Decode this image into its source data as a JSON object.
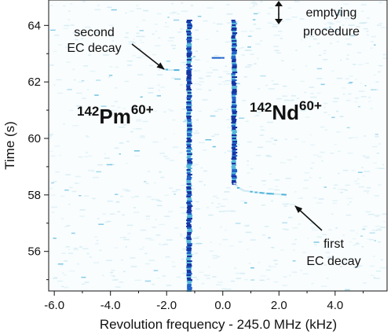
{
  "chart_data": {
    "type": "heatmap",
    "xlabel": "Revolution frequency - 245.0 MHz (kHz)",
    "ylabel": "Time (s)",
    "xlim": [
      -6.2,
      5.85
    ],
    "ylim": [
      54.6,
      64.9
    ],
    "xticks": [
      -6.0,
      -4.0,
      -2.0,
      0.0,
      2.0,
      4.0
    ],
    "xtick_labels": [
      "-6.0",
      "-4.0",
      "-2.0",
      "0.0",
      "2.0",
      "4.0"
    ],
    "yticks": [
      56,
      58,
      60,
      62,
      64
    ],
    "ytick_labels": [
      "56",
      "58",
      "60",
      "62",
      "64"
    ],
    "grid": false,
    "colormap": [
      "#ffffff",
      "#cfe9f2",
      "#4fb3d9",
      "#1a5fc8",
      "#0b2fa0"
    ],
    "traces": [
      {
        "ion": "142Pm60+",
        "x": [
          -1.2,
          -1.2
        ],
        "y": [
          54.6,
          64.2
        ],
        "intensity": "strong"
      },
      {
        "ion": "142Nd60+",
        "x": [
          0.4,
          0.4
        ],
        "y": [
          58.4,
          64.2
        ],
        "intensity": "strong"
      },
      {
        "ion": "142Nd60+ transition",
        "x": [
          0.42,
          0.55,
          0.75,
          1.1,
          1.6,
          2.3
        ],
        "y": [
          58.4,
          58.25,
          58.15,
          58.1,
          58.05,
          58.0
        ],
        "intensity": "weak"
      },
      {
        "ion": "second decay arrival",
        "x": [
          -2.1,
          -1.9,
          -1.7,
          -1.5
        ],
        "y": [
          62.45,
          62.42,
          62.42,
          62.42
        ],
        "intensity": "weak"
      },
      {
        "ion": "connecting segment",
        "x": [
          -0.35,
          -0.1,
          0.1
        ],
        "y": [
          62.85,
          62.85,
          62.85
        ],
        "intensity": "medium"
      }
    ],
    "annotations": [
      {
        "lines": [
          "second",
          "EC decay"
        ],
        "arrow_to": [
          -1.95,
          62.45
        ]
      },
      {
        "lines": [
          "first",
          "EC decay"
        ],
        "arrow_to": [
          2.15,
          57.6
        ]
      },
      {
        "lines": [
          "emptying",
          "procedure"
        ],
        "span_y": [
          64.3,
          65.0
        ]
      }
    ],
    "ion_labels": [
      {
        "mass": "142",
        "symbol": "Pm",
        "charge": "60+"
      },
      {
        "mass": "142",
        "symbol": "Nd",
        "charge": "60+"
      }
    ]
  }
}
